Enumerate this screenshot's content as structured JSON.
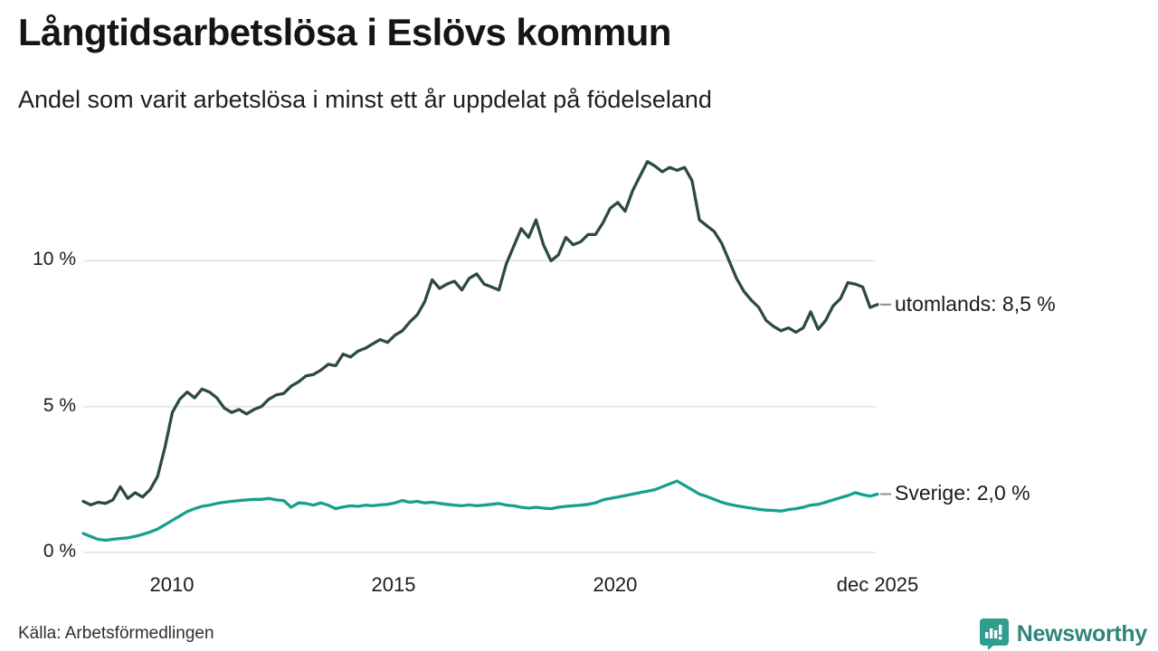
{
  "header": {
    "title": "Långtidsarbetslösa i Eslövs kommun",
    "subtitle": "Andel som varit arbetslösa i minst ett år uppdelat på födelseland"
  },
  "footer": {
    "source": "Källa: Arbetsförmedlingen",
    "brand_name": "Newsworthy",
    "brand_icon": "newsworthy-speech-bubble-bar-chart-icon",
    "brand_color": "#2f9e8e",
    "brand_text_color": "#2e857b"
  },
  "chart_data": {
    "type": "line",
    "title": "Långtidsarbetslösa i Eslövs kommun",
    "subtitle": "Andel som varit arbetslösa i minst ett år uppdelat på födelseland",
    "x_unit": "year (monthly observations)",
    "x_range": [
      2008.0,
      2025.92
    ],
    "ylim": [
      0,
      14
    ],
    "grid": "horizontal-only",
    "legend_position": "end-of-line-labels-right",
    "gridline_color": "#e8e8eb",
    "connector_dash_color": "#8c8c8c",
    "y_ticks": [
      {
        "value": 0,
        "label": "0 %"
      },
      {
        "value": 5,
        "label": "5 %"
      },
      {
        "value": 10,
        "label": "10 %"
      }
    ],
    "x_ticks": [
      {
        "value": 2010,
        "label": "2010"
      },
      {
        "value": 2015,
        "label": "2015"
      },
      {
        "value": 2020,
        "label": "2020"
      },
      {
        "value": 2025.92,
        "label": "dec 2025"
      }
    ],
    "series": [
      {
        "name": "utomlands",
        "color": "#2c4a44",
        "end_label": "utomlands: 8,5 %",
        "end_value": 8.5,
        "values": [
          1.75,
          1.63,
          1.72,
          1.68,
          1.8,
          2.25,
          1.85,
          2.05,
          1.9,
          2.15,
          2.6,
          3.6,
          4.8,
          5.25,
          5.5,
          5.3,
          5.6,
          5.5,
          5.3,
          4.95,
          4.8,
          4.9,
          4.75,
          4.9,
          5.0,
          5.25,
          5.4,
          5.45,
          5.7,
          5.85,
          6.05,
          6.1,
          6.25,
          6.45,
          6.4,
          6.8,
          6.7,
          6.9,
          7.0,
          7.15,
          7.3,
          7.2,
          7.45,
          7.6,
          7.9,
          8.15,
          8.6,
          9.35,
          9.05,
          9.2,
          9.3,
          9.0,
          9.4,
          9.55,
          9.2,
          9.1,
          9.0,
          9.9,
          10.5,
          11.1,
          10.8,
          11.4,
          10.55,
          10.0,
          10.2,
          10.8,
          10.55,
          10.65,
          10.9,
          10.9,
          11.3,
          11.8,
          12.0,
          11.7,
          12.4,
          12.9,
          13.4,
          13.25,
          13.05,
          13.2,
          13.1,
          13.2,
          12.75,
          11.4,
          11.2,
          11.0,
          10.6,
          10.0,
          9.4,
          8.95,
          8.65,
          8.4,
          7.95,
          7.75,
          7.6,
          7.7,
          7.55,
          7.7,
          8.25,
          7.65,
          7.95,
          8.45,
          8.7,
          9.25,
          9.2,
          9.1,
          8.4,
          8.5
        ]
      },
      {
        "name": "Sverige",
        "color": "#17a08c",
        "end_label": "Sverige: 2,0 %",
        "end_value": 2.0,
        "values": [
          0.65,
          0.55,
          0.45,
          0.42,
          0.45,
          0.48,
          0.5,
          0.55,
          0.62,
          0.7,
          0.8,
          0.95,
          1.1,
          1.25,
          1.4,
          1.5,
          1.58,
          1.62,
          1.68,
          1.72,
          1.75,
          1.78,
          1.8,
          1.82,
          1.82,
          1.85,
          1.8,
          1.78,
          1.55,
          1.7,
          1.68,
          1.62,
          1.7,
          1.62,
          1.5,
          1.56,
          1.6,
          1.58,
          1.62,
          1.6,
          1.63,
          1.65,
          1.7,
          1.78,
          1.72,
          1.75,
          1.7,
          1.72,
          1.68,
          1.65,
          1.62,
          1.6,
          1.63,
          1.6,
          1.62,
          1.65,
          1.68,
          1.62,
          1.6,
          1.55,
          1.52,
          1.55,
          1.52,
          1.5,
          1.55,
          1.58,
          1.6,
          1.62,
          1.65,
          1.7,
          1.8,
          1.85,
          1.9,
          1.95,
          2.0,
          2.05,
          2.1,
          2.15,
          2.25,
          2.35,
          2.45,
          2.3,
          2.15,
          2.0,
          1.92,
          1.82,
          1.72,
          1.65,
          1.6,
          1.56,
          1.52,
          1.48,
          1.45,
          1.44,
          1.42,
          1.47,
          1.5,
          1.55,
          1.62,
          1.65,
          1.72,
          1.8,
          1.88,
          1.95,
          2.05,
          1.98,
          1.93,
          2.0
        ]
      }
    ]
  }
}
